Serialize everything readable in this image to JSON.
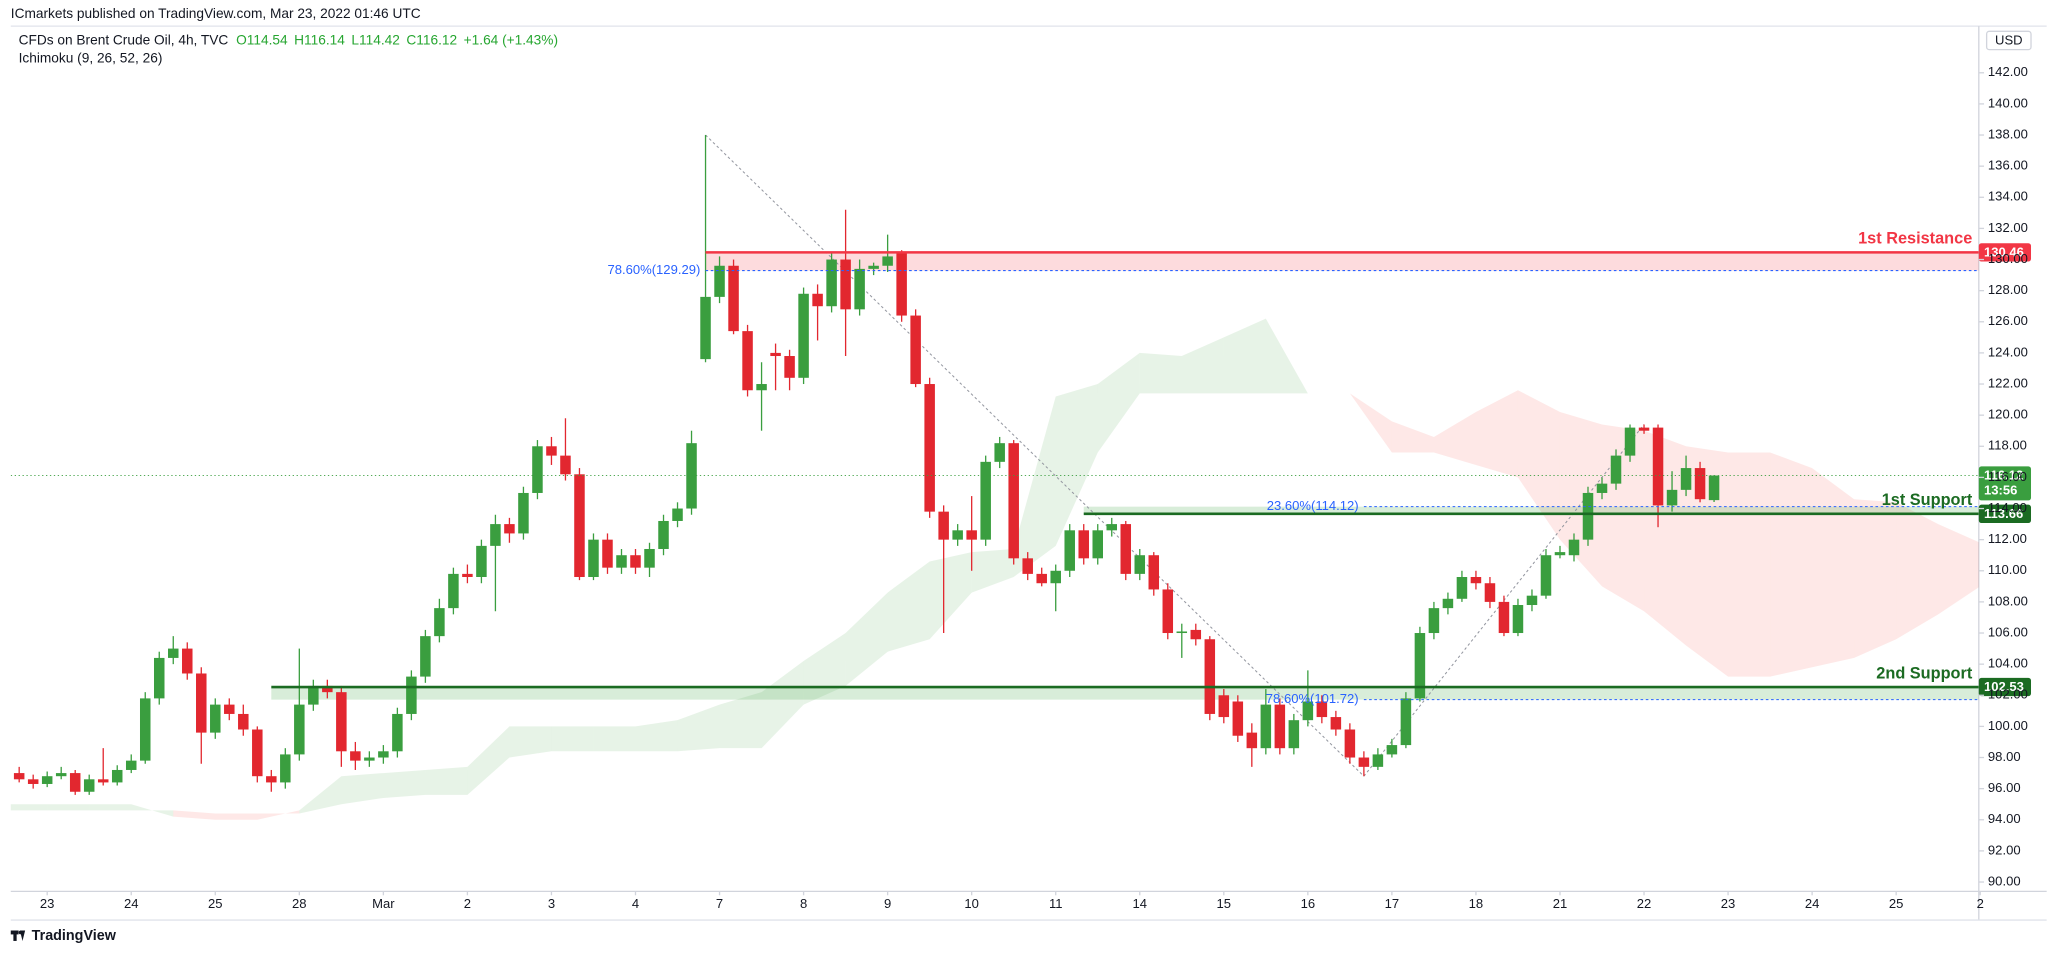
{
  "header": {
    "publisher": "ICmarkets published on TradingView.com, Mar 23, 2022 01:46 UTC",
    "footer": "TradingView"
  },
  "chart_data": {
    "type": "candlestick",
    "legend": {
      "symbol": "CFDs on Brent Crude Oil, 4h, TVC",
      "open": "O114.54",
      "high": "H116.14",
      "low": "L114.42",
      "close": "C116.12",
      "change": "+1.64 (+1.43%)"
    },
    "currency": "USD",
    "countdown": "13:56",
    "up_color": "#3a9e3f",
    "down_color": "#e2272f",
    "x": [
      -2,
      -1,
      0,
      1,
      2,
      3,
      4,
      5,
      6,
      7,
      8,
      9,
      10,
      11,
      12,
      13,
      14,
      15,
      16,
      17,
      18,
      19,
      20,
      21,
      22,
      23,
      24,
      25,
      26,
      27,
      28,
      29,
      30,
      31,
      32,
      33,
      34,
      35,
      36,
      37,
      38,
      39,
      40,
      41,
      42,
      43,
      44,
      45,
      46,
      47,
      48,
      49,
      50,
      51,
      52,
      53,
      54,
      55,
      56,
      57,
      58,
      59,
      60,
      61,
      62,
      63,
      64,
      65,
      66,
      67,
      68,
      69,
      70,
      71,
      72,
      73,
      74,
      75,
      76,
      77,
      78,
      79,
      80,
      81,
      82,
      83,
      84,
      85,
      86,
      87,
      88,
      89,
      90,
      91,
      92,
      93,
      94,
      95,
      96,
      97,
      98,
      99,
      100,
      101,
      102,
      103,
      104,
      105,
      106,
      107,
      108,
      109,
      110,
      111,
      112,
      113,
      114,
      115,
      116,
      117,
      118,
      119
    ],
    "open": [
      97.0,
      96.6,
      96.3,
      96.8,
      97.0,
      95.8,
      96.6,
      96.4,
      97.2,
      97.8,
      101.8,
      104.4,
      105.0,
      103.4,
      99.6,
      101.4,
      100.8,
      99.8,
      96.8,
      96.4,
      98.2,
      101.4,
      102.6,
      102.2,
      98.4,
      97.8,
      98.0,
      98.4,
      100.8,
      103.2,
      105.8,
      107.6,
      109.8,
      109.6,
      111.6,
      113.0,
      112.4,
      115.0,
      118.0,
      117.4,
      116.2,
      109.6,
      112.0,
      110.2,
      111.0,
      110.2,
      111.4,
      113.2,
      114.0,
      123.6,
      127.6,
      129.6,
      125.4,
      121.6,
      124.0,
      123.8,
      122.4,
      127.8,
      127.0,
      130.0,
      126.8,
      129.4,
      129.6,
      130.4,
      126.4,
      122.0,
      113.8,
      112.0,
      112.6,
      112.0,
      117.0,
      118.2,
      110.8,
      109.8,
      109.2,
      110.0,
      112.6,
      110.8,
      112.6,
      113.0,
      109.8,
      111.0,
      108.8,
      106.0,
      106.2,
      105.6,
      102.0,
      101.6,
      99.6,
      98.6,
      101.4,
      98.6,
      100.4,
      101.6,
      100.6,
      99.8,
      98.0,
      97.4,
      98.2,
      98.8,
      101.8,
      106.0,
      107.6,
      108.2,
      109.6,
      109.2,
      108.0,
      106.0,
      107.8,
      108.4,
      111.0,
      111.0,
      112.0,
      115.0,
      115.6,
      117.4,
      119.2,
      119.2,
      114.2,
      115.2,
      116.6,
      114.54
    ],
    "high": [
      97.4,
      96.9,
      97.1,
      97.4,
      97.2,
      96.9,
      98.6,
      97.5,
      98.2,
      102.2,
      104.8,
      105.8,
      105.4,
      103.8,
      101.8,
      101.8,
      101.4,
      100.0,
      97.2,
      98.6,
      105.0,
      103.0,
      103.0,
      102.6,
      99.0,
      98.4,
      98.8,
      101.2,
      103.6,
      106.2,
      108.2,
      110.2,
      110.4,
      112.0,
      113.6,
      113.4,
      115.4,
      118.4,
      118.6,
      119.8,
      116.6,
      112.4,
      112.4,
      111.4,
      111.4,
      111.8,
      113.6,
      114.4,
      119.0,
      138.0,
      130.2,
      130.0,
      125.8,
      123.4,
      124.6,
      124.2,
      128.2,
      128.4,
      130.4,
      133.2,
      130.0,
      129.8,
      131.6,
      130.6,
      126.8,
      122.4,
      114.2,
      113.0,
      114.8,
      117.4,
      118.6,
      118.4,
      111.2,
      110.2,
      110.4,
      113.0,
      113.0,
      113.0,
      113.4,
      113.2,
      111.4,
      111.2,
      109.2,
      106.6,
      106.6,
      105.8,
      102.4,
      102.0,
      100.2,
      102.4,
      101.8,
      100.8,
      103.6,
      102.0,
      101.0,
      100.2,
      98.4,
      98.6,
      99.2,
      102.2,
      106.4,
      108.0,
      108.6,
      110.0,
      110.0,
      109.6,
      108.4,
      108.2,
      108.8,
      111.4,
      111.6,
      112.4,
      115.4,
      116.0,
      117.8,
      119.4,
      119.4,
      119.4,
      116.4,
      117.4,
      117.0,
      116.14
    ],
    "low": [
      96.4,
      96.0,
      96.1,
      96.6,
      95.6,
      95.6,
      96.2,
      96.2,
      97.0,
      97.6,
      101.4,
      104.0,
      103.0,
      97.6,
      99.2,
      100.4,
      99.4,
      96.4,
      95.8,
      96.0,
      97.8,
      101.0,
      101.8,
      97.4,
      97.2,
      97.4,
      97.6,
      98.0,
      100.4,
      102.8,
      105.4,
      107.2,
      109.2,
      109.2,
      107.4,
      111.8,
      112.0,
      114.6,
      116.8,
      115.8,
      109.4,
      109.4,
      109.8,
      109.8,
      109.8,
      109.6,
      111.0,
      112.8,
      113.6,
      123.4,
      127.2,
      125.2,
      121.2,
      119.0,
      121.6,
      121.6,
      122.0,
      124.8,
      126.6,
      123.8,
      126.4,
      129.0,
      129.2,
      126.0,
      121.8,
      113.4,
      106.0,
      111.6,
      110.0,
      111.6,
      116.6,
      110.4,
      109.4,
      109.0,
      107.4,
      109.6,
      110.4,
      110.4,
      112.2,
      109.4,
      109.4,
      108.4,
      105.6,
      104.4,
      105.2,
      100.4,
      100.2,
      99.0,
      97.4,
      98.2,
      98.2,
      98.2,
      100.0,
      100.2,
      99.4,
      97.6,
      96.8,
      97.2,
      98.0,
      98.6,
      101.6,
      105.6,
      107.2,
      108.0,
      108.8,
      107.6,
      105.8,
      105.8,
      107.4,
      108.2,
      110.8,
      110.6,
      111.6,
      114.6,
      115.2,
      117.0,
      118.8,
      112.8,
      113.8,
      114.8,
      114.4,
      114.42
    ],
    "close": [
      96.6,
      96.3,
      96.8,
      97.0,
      95.8,
      96.6,
      96.4,
      97.2,
      97.8,
      101.8,
      104.4,
      105.0,
      103.4,
      99.6,
      101.4,
      100.8,
      99.8,
      96.8,
      96.4,
      98.2,
      101.4,
      102.6,
      102.2,
      98.4,
      97.8,
      98.0,
      98.4,
      100.8,
      103.2,
      105.8,
      107.6,
      109.8,
      109.6,
      111.6,
      113.0,
      112.4,
      115.0,
      118.0,
      117.4,
      116.2,
      109.6,
      112.0,
      110.2,
      111.0,
      110.2,
      111.4,
      113.2,
      114.0,
      118.2,
      127.6,
      129.6,
      125.4,
      121.6,
      122.0,
      123.8,
      122.4,
      127.8,
      127.0,
      130.0,
      126.8,
      129.4,
      129.6,
      130.2,
      126.4,
      122.0,
      113.8,
      112.0,
      112.6,
      112.0,
      117.0,
      118.2,
      110.8,
      109.8,
      109.2,
      110.0,
      112.6,
      110.8,
      112.6,
      113.0,
      109.8,
      111.0,
      108.8,
      106.0,
      106.1,
      105.6,
      100.8,
      100.6,
      99.4,
      98.6,
      101.4,
      98.6,
      100.4,
      101.6,
      100.6,
      99.8,
      98.0,
      97.4,
      98.2,
      98.8,
      101.8,
      106.0,
      107.6,
      108.2,
      109.6,
      109.2,
      108.0,
      106.0,
      107.8,
      108.4,
      111.0,
      111.2,
      112.0,
      115.0,
      115.6,
      117.4,
      119.2,
      119.0,
      114.2,
      115.2,
      116.6,
      114.6,
      116.12
    ],
    "ichimoku": {
      "name": "Ichimoku (9, 26, 52, 26)",
      "up_color": "rgba(67,160,71,0.13)",
      "down_color": "rgba(244,67,54,0.12)",
      "x": [
        -3,
        0,
        3,
        6,
        9,
        12,
        15,
        18,
        21,
        24,
        27,
        30,
        33,
        36,
        39,
        42,
        45,
        48,
        51,
        54,
        57,
        60,
        63,
        66,
        69,
        72,
        75,
        78,
        81,
        84,
        87,
        90,
        93,
        96,
        99,
        102,
        105,
        108,
        111,
        114,
        117,
        120,
        123,
        126,
        129,
        132,
        135,
        138
      ],
      "span_a": [
        95.0,
        95.0,
        95.0,
        95.0,
        94.2,
        94.0,
        94.0,
        94.6,
        96.8,
        97.0,
        97.2,
        97.4,
        100.0,
        100.0,
        100.0,
        100.0,
        100.4,
        101.4,
        102.2,
        104.2,
        106.0,
        108.6,
        110.6,
        111.2,
        111.4,
        121.2,
        122.0,
        124.0,
        123.8,
        125.0,
        126.2,
        121.4,
        121.4,
        117.6,
        117.6,
        116.8,
        116.0,
        112.0,
        109.0,
        107.4,
        105.2,
        103.2,
        103.2,
        103.8,
        104.4,
        105.6,
        107.2,
        109.0
      ],
      "span_b": [
        94.6,
        94.6,
        94.6,
        94.6,
        94.6,
        94.4,
        94.4,
        94.4,
        95.0,
        95.4,
        95.6,
        95.6,
        98.0,
        98.4,
        98.4,
        98.4,
        98.4,
        98.6,
        98.6,
        101.4,
        102.6,
        104.8,
        105.6,
        108.6,
        109.6,
        111.6,
        117.6,
        121.4,
        121.4,
        121.4,
        121.4,
        121.4,
        121.4,
        119.6,
        118.6,
        120.2,
        121.6,
        120.2,
        119.4,
        119.0,
        118.0,
        117.6,
        117.6,
        116.6,
        114.6,
        114.4,
        113.0,
        111.8
      ]
    },
    "levels": [
      {
        "label": "1st Resistance",
        "value": 130.46,
        "start": 47,
        "color": "#f23645",
        "zone_color": "rgba(242,54,69,0.18)",
        "fib": {
          "label": "78.60%(129.29)",
          "value": 129.29,
          "start": 47
        }
      },
      {
        "label": "1st Support",
        "value": 113.66,
        "start": 74,
        "color": "#1b6b22",
        "zone_color": "rgba(76,175,80,0.22)",
        "fib": {
          "label": "23.60%(114.12)",
          "value": 114.12,
          "start": 94
        }
      },
      {
        "label": "2nd Support",
        "value": 102.53,
        "start": 16,
        "color": "#1b6b22",
        "zone_color": "rgba(76,175,80,0.22)",
        "fib": {
          "label": "78.60%(101.72)",
          "value": 101.72,
          "start": 94
        }
      }
    ],
    "trendlines": [
      {
        "x": [
          47,
          94
        ],
        "y": [
          138.0,
          96.8
        ]
      },
      {
        "x": [
          94,
          114
        ],
        "y": [
          96.8,
          119.4
        ]
      }
    ],
    "xlim": [
      -2.6,
      137.9
    ],
    "xticks": [
      {
        "value": 0,
        "label": "23"
      },
      {
        "value": 6,
        "label": "24"
      },
      {
        "value": 12,
        "label": "25"
      },
      {
        "value": 18,
        "label": "28"
      },
      {
        "value": 24,
        "label": "Mar"
      },
      {
        "value": 30,
        "label": "2"
      },
      {
        "value": 36,
        "label": "3"
      },
      {
        "value": 42,
        "label": "4"
      },
      {
        "value": 48,
        "label": "7"
      },
      {
        "value": 54,
        "label": "8"
      },
      {
        "value": 60,
        "label": "9"
      },
      {
        "value": 66,
        "label": "10"
      },
      {
        "value": 72,
        "label": "11"
      },
      {
        "value": 78,
        "label": "14"
      },
      {
        "value": 84,
        "label": "15"
      },
      {
        "value": 90,
        "label": "16"
      },
      {
        "value": 96,
        "label": "17"
      },
      {
        "value": 102,
        "label": "18"
      },
      {
        "value": 108,
        "label": "21"
      },
      {
        "value": 114,
        "label": "22"
      },
      {
        "value": 120,
        "label": "23"
      },
      {
        "value": 126,
        "label": "24"
      },
      {
        "value": 132,
        "label": "25"
      },
      {
        "value": 138,
        "label": "2"
      }
    ],
    "ylim": [
      89.4,
      145.0
    ],
    "yticks": [
      {
        "value": 90,
        "label": "90.00"
      },
      {
        "value": 92,
        "label": "92.00"
      },
      {
        "value": 94,
        "label": "94.00"
      },
      {
        "value": 96,
        "label": "96.00"
      },
      {
        "value": 98,
        "label": "98.00"
      },
      {
        "value": 100,
        "label": "100.00"
      },
      {
        "value": 102,
        "label": "102.00"
      },
      {
        "value": 104,
        "label": "104.00"
      },
      {
        "value": 106,
        "label": "106.00"
      },
      {
        "value": 108,
        "label": "108.00"
      },
      {
        "value": 110,
        "label": "110.00"
      },
      {
        "value": 112,
        "label": "112.00"
      },
      {
        "value": 114,
        "label": "114.00"
      },
      {
        "value": 116,
        "label": "116.00"
      },
      {
        "value": 118,
        "label": "118.00"
      },
      {
        "value": 120,
        "label": "120.00"
      },
      {
        "value": 122,
        "label": "122.00"
      },
      {
        "value": 124,
        "label": "124.00"
      },
      {
        "value": 126,
        "label": "126.00"
      },
      {
        "value": 128,
        "label": "128.00"
      },
      {
        "value": 130,
        "label": "130.00"
      },
      {
        "value": 132,
        "label": "132.00"
      },
      {
        "value": 134,
        "label": "134.00"
      },
      {
        "value": 136,
        "label": "136.00"
      },
      {
        "value": 138,
        "label": "138.00"
      },
      {
        "value": 140,
        "label": "140.00"
      },
      {
        "value": 142,
        "label": "142.00"
      }
    ],
    "grid": false
  }
}
